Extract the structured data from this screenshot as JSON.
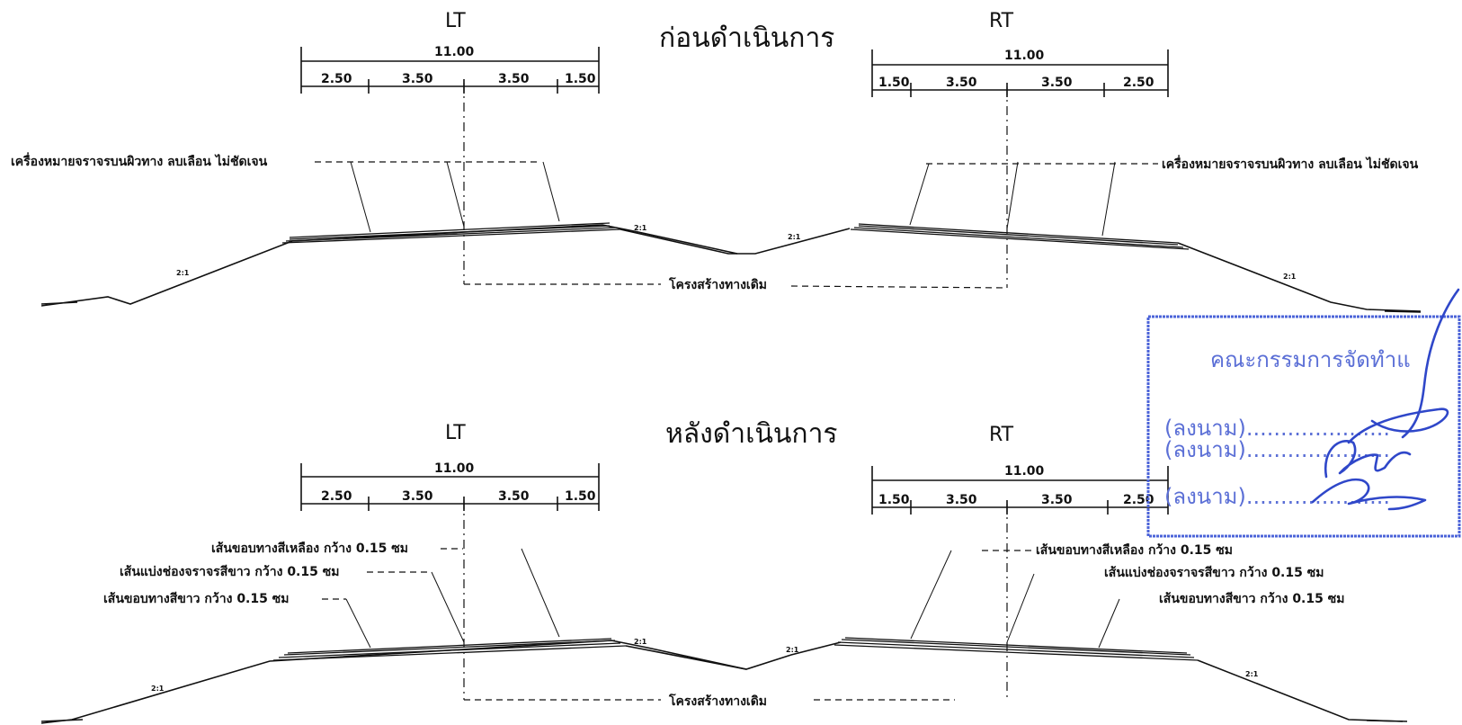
{
  "top": {
    "title": "ก่อนดำเนินการ",
    "left_side": "LT",
    "right_side": "RT",
    "left_total": "11.00",
    "left_dims": [
      "2.50",
      "3.50",
      "3.50",
      "1.50"
    ],
    "right_total": "11.00",
    "right_dims": [
      "1.50",
      "3.50",
      "3.50",
      "2.50"
    ],
    "note_left": "เครื่องหมายจราจรบนผิวทาง ลบเลือน ไม่ชัดเจน",
    "note_right": "เครื่องหมายจราจรบนผิวทาง ลบเลือน ไม่ชัดเจน",
    "structure_label": "โครงสร้างทางเดิม",
    "slopes": [
      "2:1",
      "2:1",
      "2:1",
      "2:1"
    ]
  },
  "bottom": {
    "title": "หลังดำเนินการ",
    "left_side": "LT",
    "right_side": "RT",
    "left_total": "11.00",
    "left_dims": [
      "2.50",
      "3.50",
      "3.50",
      "1.50"
    ],
    "right_total": "11.00",
    "right_dims": [
      "1.50",
      "3.50",
      "3.50",
      "2.50"
    ],
    "left_notes": [
      "เส้นขอบทางสีเหลือง กว้าง 0.15 ซม",
      "เส้นแบ่งช่องจราจรสีขาว กว้าง 0.15 ซม",
      "เส้นขอบทางสีขาว กว้าง 0.15 ซม"
    ],
    "right_notes": [
      "เส้นขอบทางสีเหลือง กว้าง 0.15 ซม",
      "เส้นแบ่งช่องจราจรสีขาว กว้าง 0.15 ซม",
      "เส้นขอบทางสีขาว กว้าง 0.15 ซม"
    ],
    "structure_label": "โครงสร้างทางเดิม",
    "slopes": [
      "2:1",
      "2:1",
      "2:1",
      "2:1"
    ]
  },
  "stamp": {
    "heading": "คณะกรรมการจัดทำแ",
    "sign_rows": [
      "(ลงนาม).....................",
      "(ลงนาม).....................",
      "(ลงนาม)....................."
    ]
  },
  "colors": {
    "ink": "#111111",
    "stamp": "#4b63d8"
  }
}
